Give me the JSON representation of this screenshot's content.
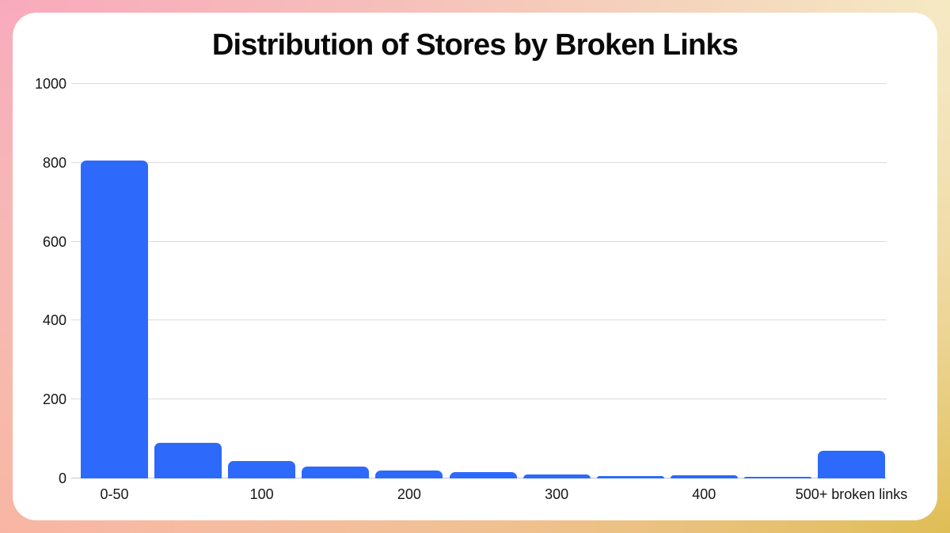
{
  "frame": {
    "corner_colors": {
      "top_left": "#F8AABD",
      "top_right": "#F5E9C3",
      "bottom_left": "#F8B5A3",
      "bottom_right": "#E0BE56"
    },
    "card_color": "#FFFFFF"
  },
  "chart_data": {
    "type": "bar",
    "title": "Distribution of Stores by Broken Links",
    "xlabel": "",
    "ylabel": "",
    "values": [
      805,
      90,
      45,
      30,
      20,
      17,
      10,
      6,
      9,
      4,
      70
    ],
    "x_tick_labels": [
      "0-50",
      "100",
      "200",
      "300",
      "400",
      "500+ broken links"
    ],
    "x_tick_bar_indexes": [
      0,
      2,
      4,
      6,
      8,
      10
    ],
    "y_ticks": [
      0,
      200,
      400,
      600,
      800,
      1000
    ],
    "ylim": [
      0,
      1000
    ],
    "grid": true,
    "legend": false,
    "bar_color": "#2D69FA",
    "gridline_color": "#DBDBDB",
    "axis_line_color": "#C6C6C6",
    "tick_text_color": "#161616",
    "title_color": "#0A0A0A"
  }
}
